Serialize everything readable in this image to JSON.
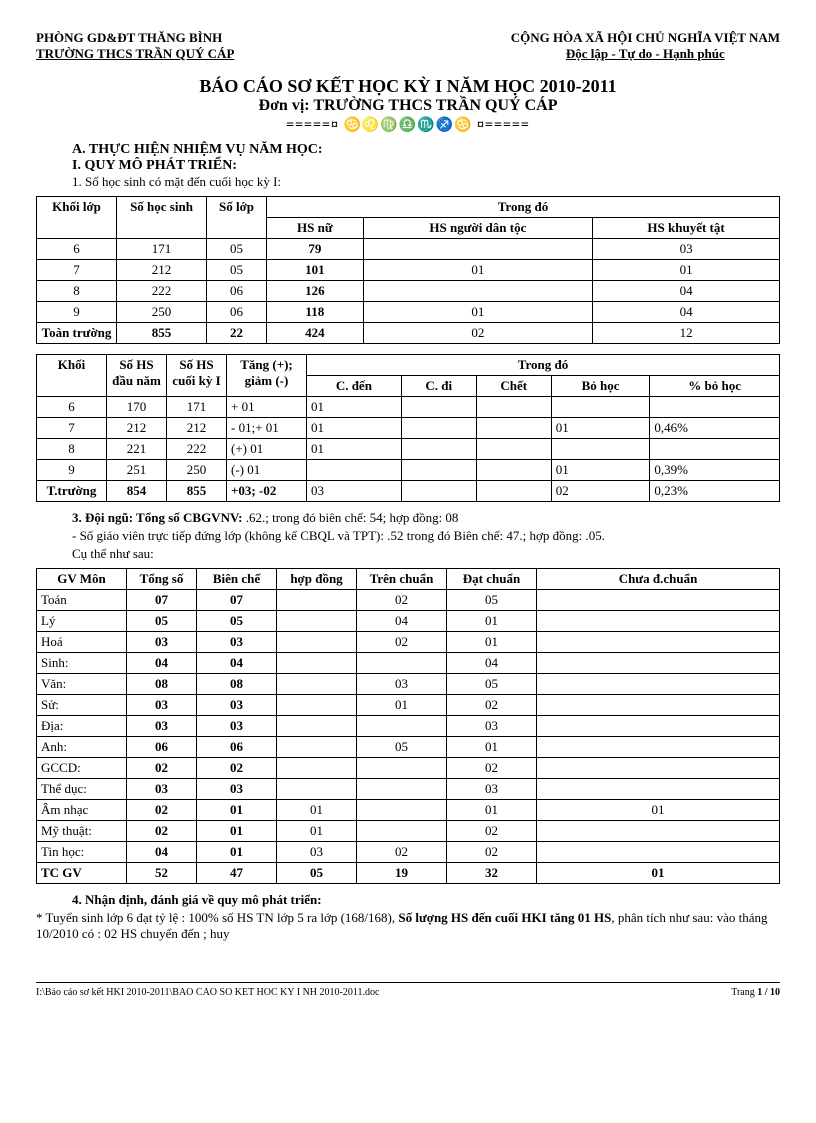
{
  "header": {
    "left_line1": "PHÒNG GD&ĐT THĂNG BÌNH",
    "left_line2": "TRƯỜNG THCS TRẦN QUÝ CÁP",
    "right_line1": "CỘNG HÒA XÃ HỘI CHỦ NGHĨA VIỆT NAM",
    "right_line2": "Độc lập - Tự do - Hạnh phúc"
  },
  "title": {
    "line1": "BÁO CÁO SƠ KẾT HỌC KỲ I NĂM HỌC 2010-2011",
    "line2": "Đơn vị: TRƯỜNG THCS TRẦN QUÝ CÁP",
    "divider": "=====¤ ♋♌♍♎♏♐♋ ¤====="
  },
  "sections": {
    "A": "A. THỰC HIỆN NHIỆM VỤ NĂM HỌC:",
    "I": "I. QUY MÔ PHÁT TRIỂN:",
    "s1": "1. Số học sinh có mặt đến cuối học kỳ I:"
  },
  "table1": {
    "headers": {
      "khoi": "Khối lớp",
      "sohs": "Số học sinh",
      "solop": "Số lớp",
      "trongdo": "Trong đó",
      "hsnu": "HS nữ",
      "hsdt": "HS người dân tộc",
      "hskt": "HS khuyết tật"
    },
    "rows": [
      {
        "khoi": "6",
        "sohs": "171",
        "solop": "05",
        "nu": "79",
        "dt": "",
        "kt": "03"
      },
      {
        "khoi": "7",
        "sohs": "212",
        "solop": "05",
        "nu": "101",
        "dt": "01",
        "kt": "01"
      },
      {
        "khoi": "8",
        "sohs": "222",
        "solop": "06",
        "nu": "126",
        "dt": "",
        "kt": "04"
      },
      {
        "khoi": "9",
        "sohs": "250",
        "solop": "06",
        "nu": "118",
        "dt": "01",
        "kt": "04"
      },
      {
        "khoi": "Toàn trường",
        "sohs": "855",
        "solop": "22",
        "nu": "424",
        "dt": "02",
        "kt": "12"
      }
    ]
  },
  "table2": {
    "headers": {
      "khoi": "Khối",
      "daunam": "Số HS đầu năm",
      "cuoiky": "Số HS cuối kỳ I",
      "tang": "Tăng (+); giảm (-)",
      "trongdo": "Trong đó",
      "cden": "C. đến",
      "cdi": "C. đi",
      "chet": "Chết",
      "bohoc": "Bỏ học",
      "pbohoc": "% bỏ học"
    },
    "rows": [
      {
        "khoi": "6",
        "dau": "170",
        "cuoi": "171",
        "tang": "+ 01",
        "cden": "01",
        "cdi": "",
        "chet": "",
        "bo": "",
        "pbo": ""
      },
      {
        "khoi": "7",
        "dau": "212",
        "cuoi": "212",
        "tang": "- 01;+ 01",
        "cden": "01",
        "cdi": "",
        "chet": "",
        "bo": "01",
        "pbo": "0,46%"
      },
      {
        "khoi": "8",
        "dau": "221",
        "cuoi": "222",
        "tang": "(+) 01",
        "cden": "01",
        "cdi": "",
        "chet": "",
        "bo": "",
        "pbo": ""
      },
      {
        "khoi": "9",
        "dau": "251",
        "cuoi": "250",
        "tang": "(-) 01",
        "cden": "",
        "cdi": "",
        "chet": "",
        "bo": "01",
        "pbo": "0,39%"
      },
      {
        "khoi": "T.trường",
        "dau": "854",
        "cuoi": "855",
        "tang": "+03; -02",
        "cden": "03",
        "cdi": "",
        "chet": "",
        "bo": "02",
        "pbo": "0,23%"
      }
    ]
  },
  "section3": {
    "line1_pre": "3. Đội ngũ: Tổng số CBGVNV:",
    "line1_rest": " .62.; trong đó biên chế: 54; hợp đồng: 08",
    "line2": "- Số giáo viên trực tiếp đứng lớp (không kể CBQL và TPT): .52 trong đó Biên chế: 47.; hợp đồng: .05.",
    "line3": "Cụ thể như sau:"
  },
  "table3": {
    "headers": {
      "mon": "GV Môn",
      "tong": "Tổng số",
      "bc": "Biên chế",
      "hd": "hợp đồng",
      "tren": "Trên chuẩn",
      "dat": "Đạt chuẩn",
      "chua": "Chưa đ.chuẩn"
    },
    "rows": [
      {
        "mon": "Toán",
        "tong": "07",
        "bc": "07",
        "hd": "",
        "tren": "02",
        "dat": "05",
        "chua": ""
      },
      {
        "mon": "Lý",
        "tong": "05",
        "bc": "05",
        "hd": "",
        "tren": "04",
        "dat": "01",
        "chua": ""
      },
      {
        "mon": "Hoá",
        "tong": "03",
        "bc": "03",
        "hd": "",
        "tren": "02",
        "dat": "01",
        "chua": ""
      },
      {
        "mon": "Sinh:",
        "tong": "04",
        "bc": "04",
        "hd": "",
        "tren": "",
        "dat": "04",
        "chua": ""
      },
      {
        "mon": "Văn:",
        "tong": "08",
        "bc": "08",
        "hd": "",
        "tren": "03",
        "dat": "05",
        "chua": ""
      },
      {
        "mon": "Sử:",
        "tong": "03",
        "bc": "03",
        "hd": "",
        "tren": "01",
        "dat": "02",
        "chua": ""
      },
      {
        "mon": "Địa:",
        "tong": "03",
        "bc": "03",
        "hd": "",
        "tren": "",
        "dat": "03",
        "chua": ""
      },
      {
        "mon": "Anh:",
        "tong": "06",
        "bc": "06",
        "hd": "",
        "tren": "05",
        "dat": "01",
        "chua": ""
      },
      {
        "mon": "GCCD:",
        "tong": "02",
        "bc": "02",
        "hd": "",
        "tren": "",
        "dat": "02",
        "chua": ""
      },
      {
        "mon": "Thể dục:",
        "tong": "03",
        "bc": "03",
        "hd": "",
        "tren": "",
        "dat": "03",
        "chua": ""
      },
      {
        "mon": "Âm nhạc",
        "tong": "02",
        "bc": "01",
        "hd": "01",
        "tren": "",
        "dat": "01",
        "chua": "01"
      },
      {
        "mon": "Mỹ thuật:",
        "tong": "02",
        "bc": "01",
        "hd": "01",
        "tren": "",
        "dat": "02",
        "chua": ""
      },
      {
        "mon": "Tin học:",
        "tong": "04",
        "bc": "01",
        "hd": "03",
        "tren": "02",
        "dat": "02",
        "chua": ""
      },
      {
        "mon": "TC GV",
        "tong": "52",
        "bc": "47",
        "hd": "05",
        "tren": "19",
        "dat": "32",
        "chua": "01"
      }
    ]
  },
  "section4": {
    "title": "4. Nhận định, đánh giá về quy mô phát triển:",
    "body_pre": "* Tuyển sinh lớp 6 đạt tỷ lệ : 100% số HS  TN lớp 5 ra lớp (168/168), ",
    "body_bold": "Số lượng HS    đến cuối HKI  tăng 01 HS",
    "body_post": ", phân tích như sau: vào tháng 10/2010 có : 02 HS chuyển đến ; huy"
  },
  "footer": {
    "left": "I:\\Báo cáo sơ kết HKI 2010-2011\\BAO CAO SO KET HOC KY I NH 2010-2011.doc",
    "right_pre": "Trang ",
    "right_page": "1",
    "right_post": " / 10"
  }
}
